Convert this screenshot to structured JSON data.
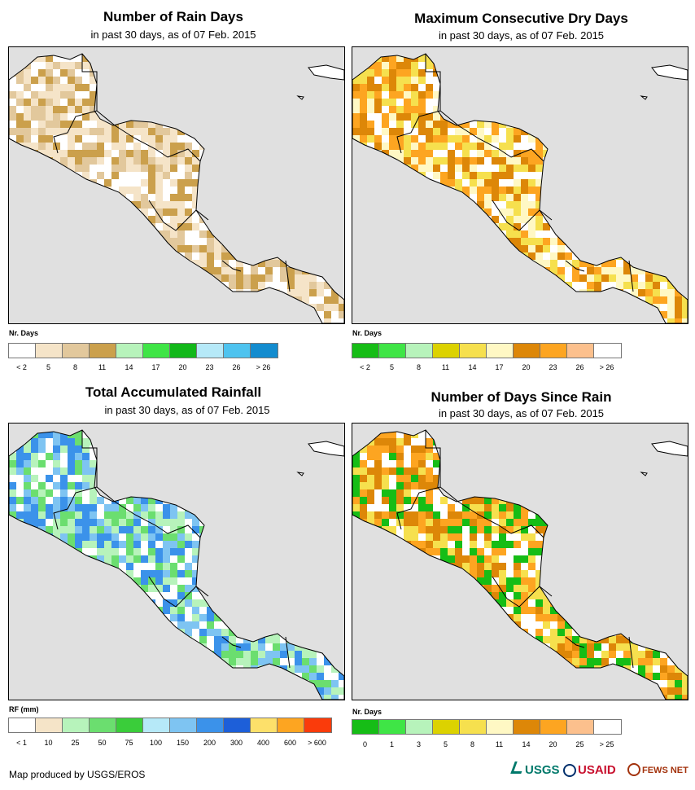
{
  "panels": [
    {
      "title": "Number of Rain Days",
      "subtitle": "in past 30 days, as of 07 Feb. 2015",
      "legend_title": "Nr. Days",
      "colors": [
        "#ffffff",
        "#f5e4c8",
        "#e2c89c",
        "#cba04c",
        "#b7f3bb",
        "#3fe546",
        "#12b81a",
        "#b6e9f8",
        "#4ec3ef",
        "#138ccf"
      ],
      "labels": [
        "< 2",
        "5",
        "8",
        "11",
        "14",
        "17",
        "20",
        "23",
        "26",
        "> 26"
      ],
      "cell_palette": [
        "#f5e4c8",
        "#e2c89c",
        "#cba04c",
        "#ffffff"
      ]
    },
    {
      "title": "Maximum Consecutive Dry Days",
      "subtitle": "in past 30 days, as of 07 Feb. 2015",
      "legend_title": "Nr. Days",
      "colors": [
        "#16bd16",
        "#3fe546",
        "#b7f3bb",
        "#dcd200",
        "#f6e04e",
        "#fff8c4",
        "#dd8708",
        "#fda521",
        "#fcc08d",
        "#ffffff"
      ],
      "labels": [
        "< 2",
        "5",
        "8",
        "11",
        "14",
        "17",
        "20",
        "23",
        "26",
        "> 26"
      ],
      "cell_palette": [
        "#f6e04e",
        "#fda521",
        "#dd8708",
        "#fff8c4",
        "#ffffff"
      ]
    },
    {
      "title": "Total Accumulated Rainfall",
      "subtitle": "in past 30 days, as of 07 Feb. 2015",
      "legend_title": "RF (mm)",
      "colors": [
        "#ffffff",
        "#f5e4c8",
        "#b7f3bb",
        "#6bde6f",
        "#3acd3a",
        "#b6e9f8",
        "#7ec4f2",
        "#3b92ea",
        "#1d5fd9",
        "#fde06a",
        "#fda521",
        "#fa3b0b"
      ],
      "labels": [
        "< 1",
        "10",
        "25",
        "50",
        "75",
        "100",
        "150",
        "200",
        "300",
        "400",
        "600",
        "> 600"
      ],
      "cell_palette": [
        "#b7f3bb",
        "#6bde6f",
        "#ffffff",
        "#7ec4f2",
        "#3b92ea"
      ]
    },
    {
      "title": "Number of Days Since Rain",
      "subtitle": "in past 30 days, as of 07 Feb. 2015",
      "legend_title": "Nr. Days",
      "colors": [
        "#16bd16",
        "#3fe546",
        "#b7f3bb",
        "#dcd200",
        "#f6e04e",
        "#fff8c4",
        "#dd8708",
        "#fda521",
        "#fcc08d",
        "#ffffff"
      ],
      "labels": [
        "0",
        "1",
        "3",
        "5",
        "8",
        "11",
        "14",
        "20",
        "25",
        "> 25"
      ],
      "cell_palette": [
        "#16bd16",
        "#fda521",
        "#dd8708",
        "#ffffff",
        "#f6e04e"
      ]
    }
  ],
  "footer": {
    "credit": "Map produced by USGS/EROS",
    "logos": [
      "USGS",
      "USAID",
      "FEWS NET"
    ]
  }
}
